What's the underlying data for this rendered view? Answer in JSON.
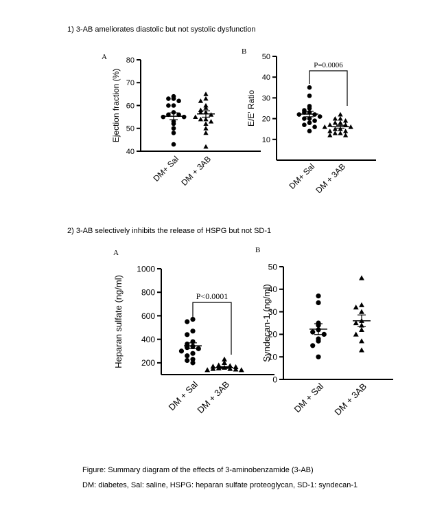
{
  "sections": [
    {
      "heading": "1)   3-AB ameliorates diastolic but not systolic dysfunction"
    },
    {
      "heading": "2)   3-AB selectively inhibits the release of HSPG but not SD-1"
    }
  ],
  "caption": {
    "line1": "Figure: Summary diagram of the effects of 3-aminobenzamide (3-AB)",
    "line2": "DM: diabetes, Sal: saline, HSPG: heparan sulfate proteoglycan, SD-1: syndecan-1"
  },
  "chart_data": [
    {
      "id": "ef",
      "panel": "A",
      "type": "scatter",
      "ylabel": "Ejection fraction (%)",
      "ylim": [
        40,
        80
      ],
      "yticks": [
        40,
        50,
        60,
        70,
        80
      ],
      "categories": [
        "DM+ Sal",
        "DM + 3AB"
      ],
      "markers": [
        "circle",
        "triangle"
      ],
      "series": [
        {
          "name": "DM+ Sal",
          "values": [
            64,
            63,
            63,
            62,
            60,
            60,
            57,
            56,
            56,
            55,
            55,
            53,
            52,
            50,
            48,
            43
          ]
        },
        {
          "name": "DM + 3AB",
          "values": [
            65,
            63,
            62,
            60,
            59,
            58,
            57,
            57,
            56,
            55,
            54,
            54,
            53,
            52,
            50,
            48,
            42
          ]
        }
      ],
      "mean": [
        55.3,
        56.3
      ],
      "sem": [
        1.5,
        1.4
      ],
      "annotation": null
    },
    {
      "id": "ee",
      "panel": "B",
      "type": "scatter",
      "ylabel": "E/E' Ratio",
      "ylim": [
        0,
        50
      ],
      "yticks": [
        10,
        20,
        30,
        40,
        50
      ],
      "categories": [
        "DM+ Sal",
        "DM + 3AB"
      ],
      "markers": [
        "circle",
        "triangle"
      ],
      "series": [
        {
          "name": "DM+ Sal",
          "values": [
            35,
            31,
            26,
            25,
            24,
            23,
            23,
            22,
            22,
            21,
            20,
            20,
            19,
            18,
            17,
            16,
            14
          ]
        },
        {
          "name": "DM + 3AB",
          "values": [
            22,
            20,
            20,
            19,
            18,
            18,
            17,
            17,
            16,
            16,
            15,
            15,
            14,
            14,
            13,
            13,
            12,
            12
          ]
        }
      ],
      "mean": [
        22.2,
        16.1
      ],
      "sem": [
        1.3,
        0.7
      ],
      "annotation": {
        "text": "P=0.0006"
      }
    },
    {
      "id": "hs",
      "panel": "A",
      "type": "scatter",
      "ylabel": "Heparan sulfate (ng/ml)",
      "ylim": [
        100,
        1000
      ],
      "yticks": [
        200,
        400,
        600,
        800,
        1000
      ],
      "categories": [
        "DM + Sal",
        "DM + 3AB"
      ],
      "markers": [
        "circle",
        "triangle"
      ],
      "series": [
        {
          "name": "DM + Sal",
          "values": [
            570,
            550,
            470,
            440,
            380,
            360,
            340,
            330,
            320,
            300,
            280,
            260,
            230,
            220,
            200
          ]
        },
        {
          "name": "DM + 3AB",
          "values": [
            230,
            200,
            180,
            175,
            170,
            165,
            160,
            155,
            150,
            150,
            145,
            140,
            140
          ]
        }
      ],
      "mean": [
        345,
        160
      ],
      "sem": [
        25,
        8
      ],
      "annotation": {
        "text": "P<0.0001"
      }
    },
    {
      "id": "sd",
      "panel": "B",
      "type": "scatter",
      "ylabel": "Syndecan-1 (ng/ml)",
      "ylim": [
        0,
        50
      ],
      "yticks": [
        0,
        10,
        20,
        30,
        40,
        50
      ],
      "categories": [
        "DM + Sal",
        "DM + 3AB"
      ],
      "markers": [
        "circle",
        "triangle"
      ],
      "series": [
        {
          "name": "DM + Sal",
          "values": [
            37,
            34,
            25,
            24,
            22,
            21,
            20,
            18,
            17,
            15,
            10
          ]
        },
        {
          "name": "DM + 3AB",
          "values": [
            45,
            33,
            32,
            30,
            26,
            25,
            24,
            22,
            20,
            17,
            13
          ]
        }
      ],
      "mean": [
        22.3,
        26.0
      ],
      "sem": [
        2.4,
        2.6
      ],
      "annotation": null
    }
  ]
}
